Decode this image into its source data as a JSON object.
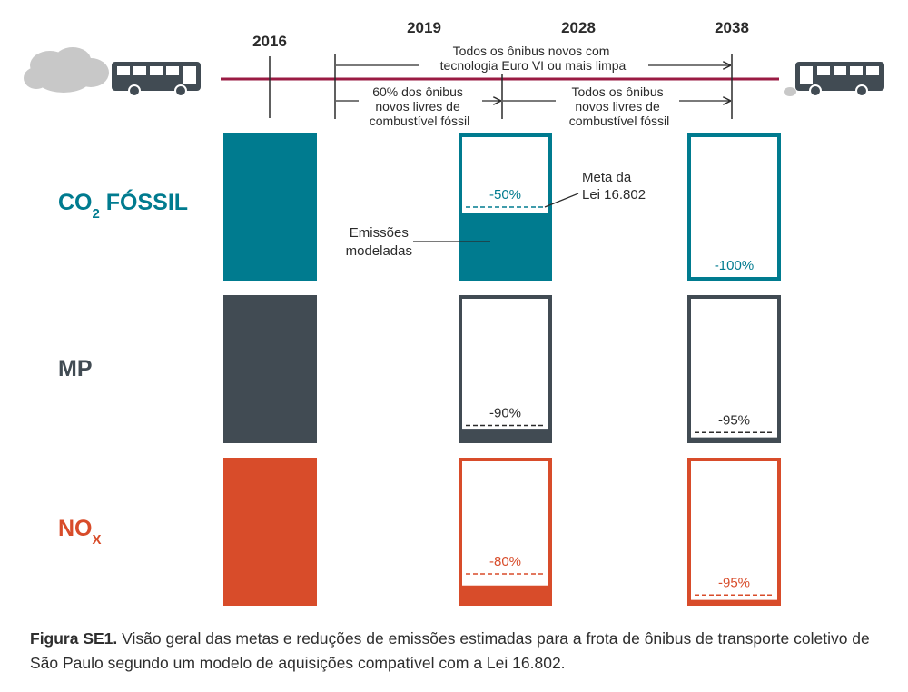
{
  "timeline": {
    "years": [
      "2016",
      "2019",
      "2028",
      "2038"
    ],
    "spans": [
      {
        "lines": [
          "Todos os ônibus novos com",
          "tecnologia Euro VI ou mais limpa"
        ]
      },
      {
        "lines": [
          "60% dos ônibus",
          "novos livres de",
          "combustível fóssil"
        ]
      },
      {
        "lines": [
          "Todos os ônibus",
          "novos livres de",
          "combustível fóssil"
        ]
      }
    ]
  },
  "annotations": {
    "meta_lines": [
      "Meta da",
      "Lei 16.802"
    ],
    "modeled_lines": [
      "Emissões",
      "modeladas"
    ]
  },
  "colors": {
    "co2": "#007b8f",
    "mp": "#414b53",
    "nox": "#d84c2a",
    "timeline": "#9a1b43",
    "cloud": "#c8c8c8"
  },
  "icons": [
    "bus-icon",
    "cloud-icon",
    "smoke-puff-icon"
  ],
  "chart_data": {
    "type": "bar",
    "categories": [
      "2016",
      "2028",
      "2038"
    ],
    "series": [
      {
        "name": "CO₂ FÓSSIL",
        "label_main": "CO",
        "label_sub": "2",
        "label_rest": " FÓSSIL",
        "color_key": "co2",
        "baseline_2016": 100,
        "targets": [
          {
            "year": "2028",
            "reduction_label": "-50%",
            "target_remaining": 50,
            "modeled_remaining": 47
          },
          {
            "year": "2038",
            "reduction_label": "-100%",
            "target_remaining": 0,
            "modeled_remaining": 0
          }
        ]
      },
      {
        "name": "MP",
        "label_main": "MP",
        "label_sub": "",
        "label_rest": "",
        "color_key": "mp",
        "baseline_2016": 100,
        "targets": [
          {
            "year": "2028",
            "reduction_label": "-90%",
            "target_remaining": 10,
            "modeled_remaining": 10
          },
          {
            "year": "2038",
            "reduction_label": "-95%",
            "target_remaining": 5,
            "modeled_remaining": 4
          }
        ]
      },
      {
        "name": "NOx",
        "label_main": "NO",
        "label_sub": "X",
        "label_rest": "",
        "color_key": "nox",
        "baseline_2016": 100,
        "targets": [
          {
            "year": "2028",
            "reduction_label": "-80%",
            "target_remaining": 20,
            "modeled_remaining": 14
          },
          {
            "year": "2038",
            "reduction_label": "-95%",
            "target_remaining": 5,
            "modeled_remaining": 4
          }
        ]
      }
    ],
    "ylim": [
      0,
      100
    ]
  },
  "caption": {
    "label": "Figura SE1.",
    "text": " Visão geral das metas e reduções de emissões estimadas para a frota de ônibus de transporte coletivo de São Paulo segundo um modelo de aquisições compatível com a Lei 16.802."
  }
}
